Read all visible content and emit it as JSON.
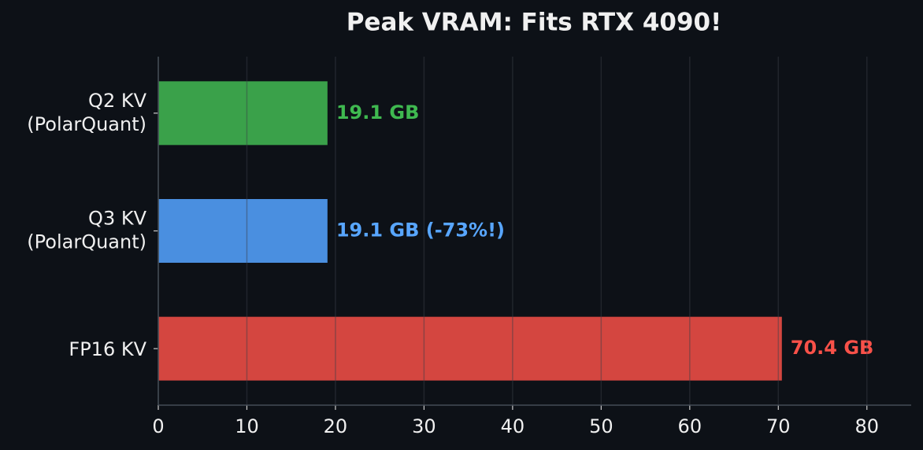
{
  "chart_data": {
    "type": "barh",
    "title": "Peak VRAM: Fits RTX 4090!",
    "categories": [
      [
        "Q2 KV",
        "(PolarQuant)"
      ],
      [
        "Q3 KV",
        "(PolarQuant)"
      ],
      [
        "FP16 KV"
      ]
    ],
    "values": [
      19.1,
      19.1,
      70.4
    ],
    "value_labels": [
      "19.1 GB",
      "19.1 GB (-73%!)",
      "70.4 GB"
    ],
    "colors": [
      "#3aa14a",
      "#4a8fe0",
      "#d44640"
    ],
    "label_colors": [
      "#3fb950",
      "#58a6ff",
      "#f85149"
    ],
    "xlim": [
      0,
      85
    ],
    "xticks": [
      0,
      10,
      20,
      30,
      40,
      50,
      60,
      70,
      80
    ],
    "grid": true
  }
}
